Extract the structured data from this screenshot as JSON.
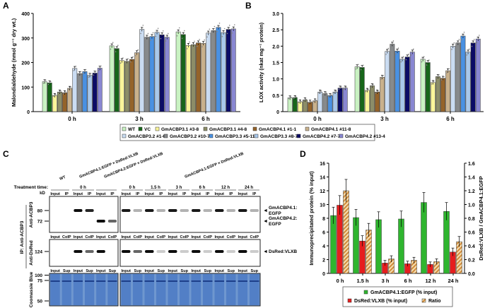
{
  "panels": {
    "a": "A",
    "b": "B",
    "c": "C",
    "d": "D"
  },
  "legend_ab": [
    {
      "label": "WT",
      "color": "#c9f2c2"
    },
    {
      "label": "VC",
      "color": "#17661a"
    },
    {
      "label": "GmACBP3.1 #3-8",
      "color": "#faf59a"
    },
    {
      "label": "GmACBP3.1 #4-8",
      "color": "#8c8d68"
    },
    {
      "label": "GmACBP4.1 #1-1",
      "color": "#94632a"
    },
    {
      "label": "GmACBP4.1 #11-8",
      "color": "#c9b18c"
    },
    {
      "label": "GmACBP3.2 #1-6",
      "color": "#cadcf2"
    },
    {
      "label": "GmACBP3.2 #10-7",
      "color": "#878a8c"
    },
    {
      "label": "GmACBP3.3 #5-11",
      "color": "#4a91e2"
    },
    {
      "label": "GmACBP3.3 #8-7",
      "color": "#a9c8ea"
    },
    {
      "label": "GmACBP4.2 #7-7",
      "color": "#0b0b66"
    },
    {
      "label": "GmACBP4.2 #13-4",
      "color": "#8987d2"
    }
  ],
  "chart_data": [
    {
      "id": "A",
      "type": "bar",
      "categories": [
        "0 h",
        "3 h",
        "6 h"
      ],
      "ylabel": "Malondialdehyde (nmol g⁻¹ dry wt.)",
      "ylim": [
        0,
        400
      ],
      "yticks": [
        "0",
        "100",
        "200",
        "300",
        "400"
      ],
      "series_values": [
        [
          122,
          117,
          66,
          80,
          77,
          95,
          176,
          155,
          163,
          148,
          157,
          177
        ],
        [
          268,
          257,
          208,
          205,
          213,
          240,
          335,
          303,
          306,
          323,
          313,
          303
        ],
        [
          325,
          314,
          270,
          273,
          280,
          278,
          320,
          330,
          343,
          322,
          335,
          337
        ]
      ]
    },
    {
      "id": "B",
      "type": "bar",
      "categories": [
        "0 h",
        "3 h",
        "6 h"
      ],
      "ylabel": "LOX activity (nkat mg⁻¹ protein)",
      "ylim": [
        0,
        3.0
      ],
      "yticks": [
        "0",
        "0.5",
        "1.0",
        "1.5",
        "2.0",
        "2.5",
        "3.0"
      ],
      "series_values": [
        [
          0.42,
          0.43,
          0.3,
          0.36,
          0.29,
          0.33,
          0.6,
          0.55,
          0.49,
          0.6,
          0.72,
          0.72
        ],
        [
          1.37,
          1.35,
          0.65,
          0.79,
          0.6,
          1.05,
          1.84,
          2.06,
          1.85,
          1.6,
          1.67,
          1.82
        ],
        [
          1.6,
          1.5,
          0.89,
          1.07,
          1.02,
          1.25,
          2.0,
          2.1,
          2.31,
          1.82,
          2.1,
          2.22
        ]
      ]
    },
    {
      "id": "D",
      "type": "bar",
      "categories": [
        "0 h",
        "1.5 h",
        "3 h",
        "6 h",
        "12 h",
        "24 h"
      ],
      "ylabel": "Immunoprecipitated protein (% input)",
      "ylabel_right": "DsRed:VLXB / GmACBP4.1:EGFP",
      "ylim": [
        0,
        16
      ],
      "yticks": [
        "0",
        "2",
        "4",
        "6",
        "8",
        "10",
        "12",
        "14",
        "16"
      ],
      "ylim_right": [
        0,
        1.6
      ],
      "yticks_right": [
        "0.0",
        "0.2",
        "0.4",
        "0.6",
        "0.8",
        "1.0",
        "1.2",
        "1.4",
        "1.6"
      ],
      "series": [
        {
          "name": "GmACBP4.1:EGFP (% input)",
          "color": "#2fb52f",
          "axis": "left",
          "values": [
            8.4,
            8.1,
            7.8,
            7.9,
            10.3,
            9.0
          ]
        },
        {
          "name": "DsRed:VLXB (% input)",
          "color": "#e61e1e",
          "axis": "left",
          "values": [
            9.9,
            4.7,
            1.5,
            1.4,
            1.3,
            3.1
          ]
        },
        {
          "name": "Ratio",
          "color": "#d9a55a",
          "axis": "right",
          "values": [
            1.2,
            0.63,
            0.21,
            0.19,
            0.17,
            0.46
          ]
        }
      ]
    }
  ],
  "blot": {
    "group_labels": [
      "WT",
      "GmACBP4.1:EGFP × DsRed:VLXB",
      "GmACBP4.2:EGFP × DsRed:VLXB",
      "GmACBP4.1:EGFP × DsRed:VLXB"
    ],
    "treatment_label": "Treatment time:",
    "left_times": [
      "",
      "0 h",
      ""
    ],
    "right_times": [
      "0 h",
      "1.5 h",
      "3 h",
      "6 h",
      "12 h",
      "24 h"
    ],
    "kd_label": "kD",
    "row1_lanes": [
      "Input",
      "IP"
    ],
    "row2_lanes": [
      "Input",
      "CoIP"
    ],
    "row3_lanes": [
      "Input",
      "Sup"
    ],
    "markers_row1": [
      "80",
      "72"
    ],
    "markers_row2": [
      "124"
    ],
    "markers_row3": [
      "100",
      "75",
      "50"
    ],
    "side_labels": {
      "row1": "Anti-ACBP3",
      "row2": "Anti-DsRed",
      "ip": "IP: Anti-ACBP3",
      "row3": "Coomassie Blue"
    },
    "arrow_labels": [
      "GmACBP4.1:",
      "EGFP",
      "GmACBP4.2:",
      "EGFP",
      "DsRed:VLXB"
    ]
  }
}
